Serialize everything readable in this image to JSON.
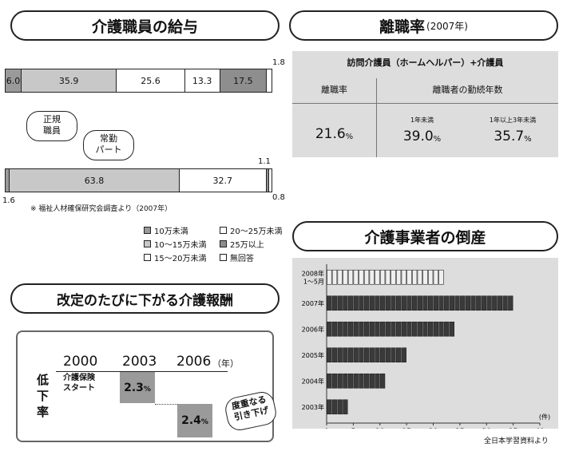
{
  "salary": {
    "title": "介護職員の給与",
    "bar1": {
      "right_note": "1.8",
      "segments": [
        {
          "value": 6.0,
          "label": "6.0",
          "color": "#9a9a9a"
        },
        {
          "value": 35.9,
          "label": "35.9",
          "color": "#c8c8c8"
        },
        {
          "value": 25.6,
          "label": "25.6",
          "color": "#ffffff"
        },
        {
          "value": 13.3,
          "label": "13.3",
          "color": "#ffffff"
        },
        {
          "value": 17.5,
          "label": "17.5",
          "color": "#8e8e8e"
        },
        {
          "value": 1.8,
          "label": "",
          "color": "#ffffff"
        }
      ]
    },
    "bar2": {
      "left_note": "1.6",
      "top_note": "1.1",
      "bottom_note": "0.8",
      "segments": [
        {
          "value": 1.6,
          "label": "",
          "color": "#9a9a9a"
        },
        {
          "value": 63.8,
          "label": "63.8",
          "color": "#c8c8c8"
        },
        {
          "value": 32.7,
          "label": "32.7",
          "color": "#ffffff"
        },
        {
          "value": 1.1,
          "label": "",
          "color": "#8e8e8e"
        },
        {
          "value": 0.8,
          "label": "",
          "color": "#ffffff"
        }
      ]
    },
    "bubble_regular": "正規\n職員",
    "bubble_parttime": "常勤\nパート",
    "source": "※ 福祉人材確保研究会調査より（2007年）",
    "legend": [
      {
        "label": "10万未満",
        "color": "#9a9a9a"
      },
      {
        "label": "20～25万未満",
        "color": "#ffffff"
      },
      {
        "label": "10～15万未満",
        "color": "#c8c8c8"
      },
      {
        "label": "25万以上",
        "color": "#8e8e8e"
      },
      {
        "label": "15～20万未満",
        "color": "#ffffff"
      },
      {
        "label": "無回答",
        "color": "#ffffff"
      }
    ]
  },
  "turnover": {
    "title": "離職率",
    "title_sub": "(2007年)",
    "header": "訪問介護員（ホームヘルパー）+介護員",
    "col1_head": "離職率",
    "col2_head": "離職者の勤続年数",
    "rate": "21.6",
    "sub1_label": "1年未満",
    "sub1_value": "39.0",
    "sub2_label": "1年以上3年未満",
    "sub2_value": "35.7",
    "unit": "%"
  },
  "bankrupt": {
    "title": "介護事業者の倒産",
    "source": "全日本学習資料より",
    "unit": "(件)"
  },
  "fees": {
    "title": "改定のたびに下がる介護報酬",
    "side_label": "低\n下\n率",
    "year2000": "2000",
    "year2003": "2003",
    "year2006": "2006",
    "year_unit": "（年）",
    "start_label": "介護保険\nスタート",
    "v2003": "2.3",
    "v2006": "2.4",
    "pct": "%",
    "bubble": "度重なる\n引き下げ"
  },
  "chart_data": {
    "type": "bar",
    "orientation": "horizontal",
    "categories": [
      "2008年\n1～5月",
      "2007年",
      "2006年",
      "2005年",
      "2004年",
      "2003年"
    ],
    "values": [
      22,
      35,
      24,
      15,
      11,
      4
    ],
    "xlim": [
      0,
      40
    ],
    "xticks": [
      0,
      5,
      10,
      15,
      20,
      25,
      30,
      35,
      40
    ],
    "xunit": "(件)"
  }
}
